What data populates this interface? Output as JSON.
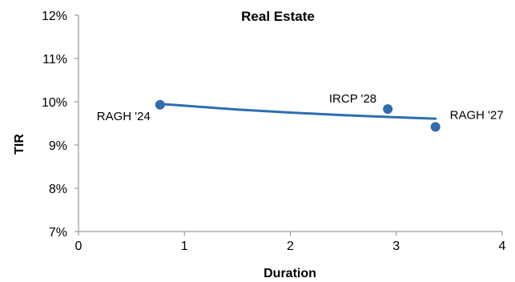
{
  "chart_data": {
    "type": "scatter",
    "title": "Real Estate",
    "xlabel": "Duration",
    "ylabel": "TIR",
    "xlim": [
      0,
      4
    ],
    "ylim": [
      7,
      12
    ],
    "x_ticks": [
      "0",
      "1",
      "2",
      "3",
      "4"
    ],
    "y_ticks": [
      "7%",
      "8%",
      "9%",
      "10%",
      "11%",
      "12%"
    ],
    "grid": false,
    "legend": "none",
    "points": [
      {
        "label": "RAGH '24",
        "x": 0.77,
        "y": 9.93
      },
      {
        "label": "IRCP '28",
        "x": 2.92,
        "y": 9.83
      },
      {
        "label": "RAGH '27",
        "x": 3.37,
        "y": 9.42
      }
    ],
    "trendline": {
      "type": "logarithmic",
      "x": [
        0.77,
        1.0,
        1.5,
        2.0,
        2.5,
        3.0,
        3.37
      ],
      "y": [
        9.95,
        9.91,
        9.82,
        9.75,
        9.69,
        9.64,
        9.61
      ]
    },
    "colors": {
      "marker": "#2E6DB0",
      "trendline": "#2E6DB0",
      "axis": "#868686"
    }
  }
}
